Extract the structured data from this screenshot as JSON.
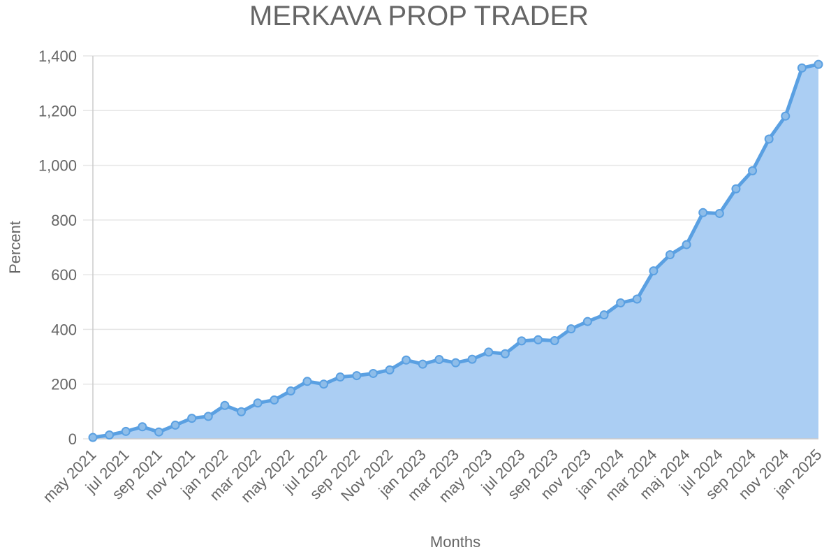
{
  "colors": {
    "line": "#5aa0e2",
    "fill": "#abcef3",
    "point_fill": "#8ebde9",
    "grid": "#e6e6e6",
    "text": "#666666"
  },
  "chart_data": {
    "type": "area",
    "title": "MERKAVA PROP TRADER",
    "xlabel": "Months",
    "ylabel": "Percent",
    "ylim": [
      0,
      1400
    ],
    "yticks": [
      "0",
      "200",
      "400",
      "600",
      "800",
      "1,000",
      "1,200",
      "1,400"
    ],
    "grid": true,
    "x": [
      "may 2021",
      "jun 2021",
      "jul 2021",
      "aug 2021",
      "sep 2021",
      "oct 2021",
      "nov 2021",
      "dec 2021",
      "jan 2022",
      "feb 2022",
      "mar 2022",
      "apr 2022",
      "may 2022",
      "jun 2022",
      "jul 2022",
      "aug 2022",
      "sep 2022",
      "oct 2022",
      "Nov 2022",
      "dec 2022",
      "jan 2023",
      "feb 2023",
      "mar 2023",
      "apr 2023",
      "may 2023",
      "jun 2023",
      "jul 2023",
      "aug 2023",
      "sep 2023",
      "oct 2023",
      "nov 2023",
      "dec 2023",
      "jan 2024",
      "feb 2024",
      "mar 2024",
      "apr 2024",
      "maj 2024",
      "jun 2024",
      "jul 2024",
      "aug 2024",
      "sep 2024",
      "oct 2024",
      "nov 2024",
      "dec 2024",
      "jan 2025"
    ],
    "x_tick_labels": [
      "may 2021",
      "jul 2021",
      "sep 2021",
      "nov 2021",
      "jan 2022",
      "mar 2022",
      "may 2022",
      "jul 2022",
      "sep 2022",
      "Nov 2022",
      "jan 2023",
      "mar 2023",
      "may 2023",
      "jul 2023",
      "sep 2023",
      "nov 2023",
      "jan 2024",
      "mar 2024",
      "maj 2024",
      "jul 2024",
      "sep 2024",
      "nov 2024",
      "jan 2025"
    ],
    "series": [
      {
        "values": [
          5,
          14,
          27,
          44,
          25,
          50,
          75,
          82,
          122,
          99,
          131,
          142,
          175,
          210,
          200,
          226,
          231,
          239,
          252,
          288,
          273,
          290,
          278,
          291,
          317,
          311,
          358,
          362,
          359,
          402,
          429,
          453,
          497,
          511,
          614,
          673,
          710,
          827,
          824,
          914,
          980,
          1096,
          1180,
          1356,
          1369
        ]
      }
    ]
  }
}
